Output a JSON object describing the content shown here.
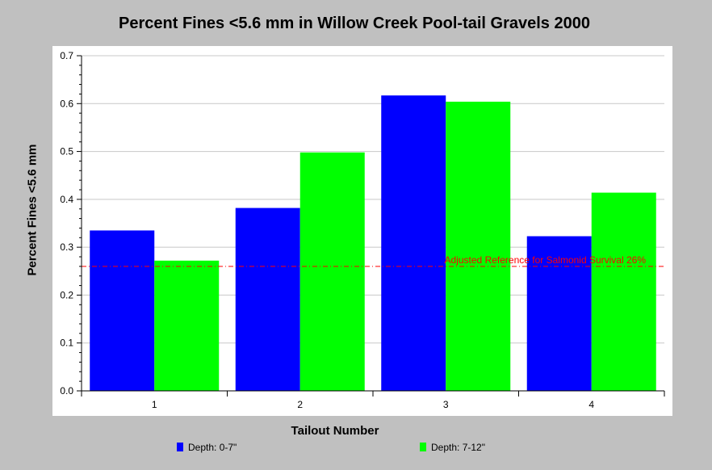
{
  "chart_data": {
    "type": "bar",
    "title": "Percent Fines <5.6 mm in Willow Creek Pool-tail Gravels 2000",
    "xlabel": "Tailout Number",
    "ylabel": "Percent Fines <5.6 mm",
    "categories": [
      "1",
      "2",
      "3",
      "4"
    ],
    "series": [
      {
        "name": "Depth: 0-7\"",
        "color": "#0000ff",
        "values": [
          0.335,
          0.382,
          0.617,
          0.323
        ]
      },
      {
        "name": "Depth: 7-12\"",
        "color": "#00ff00",
        "values": [
          0.272,
          0.498,
          0.604,
          0.414
        ]
      }
    ],
    "ylim": [
      0,
      0.7
    ],
    "yticks": [
      "0.0",
      "0.1",
      "0.2",
      "0.3",
      "0.4",
      "0.5",
      "0.6",
      "0.7"
    ],
    "grid": true,
    "legend": "bottom",
    "reference_line": {
      "label": "Adjusted Reference for Salmonid Survival 26%",
      "value": 0.26,
      "color": "#ff0000"
    }
  }
}
